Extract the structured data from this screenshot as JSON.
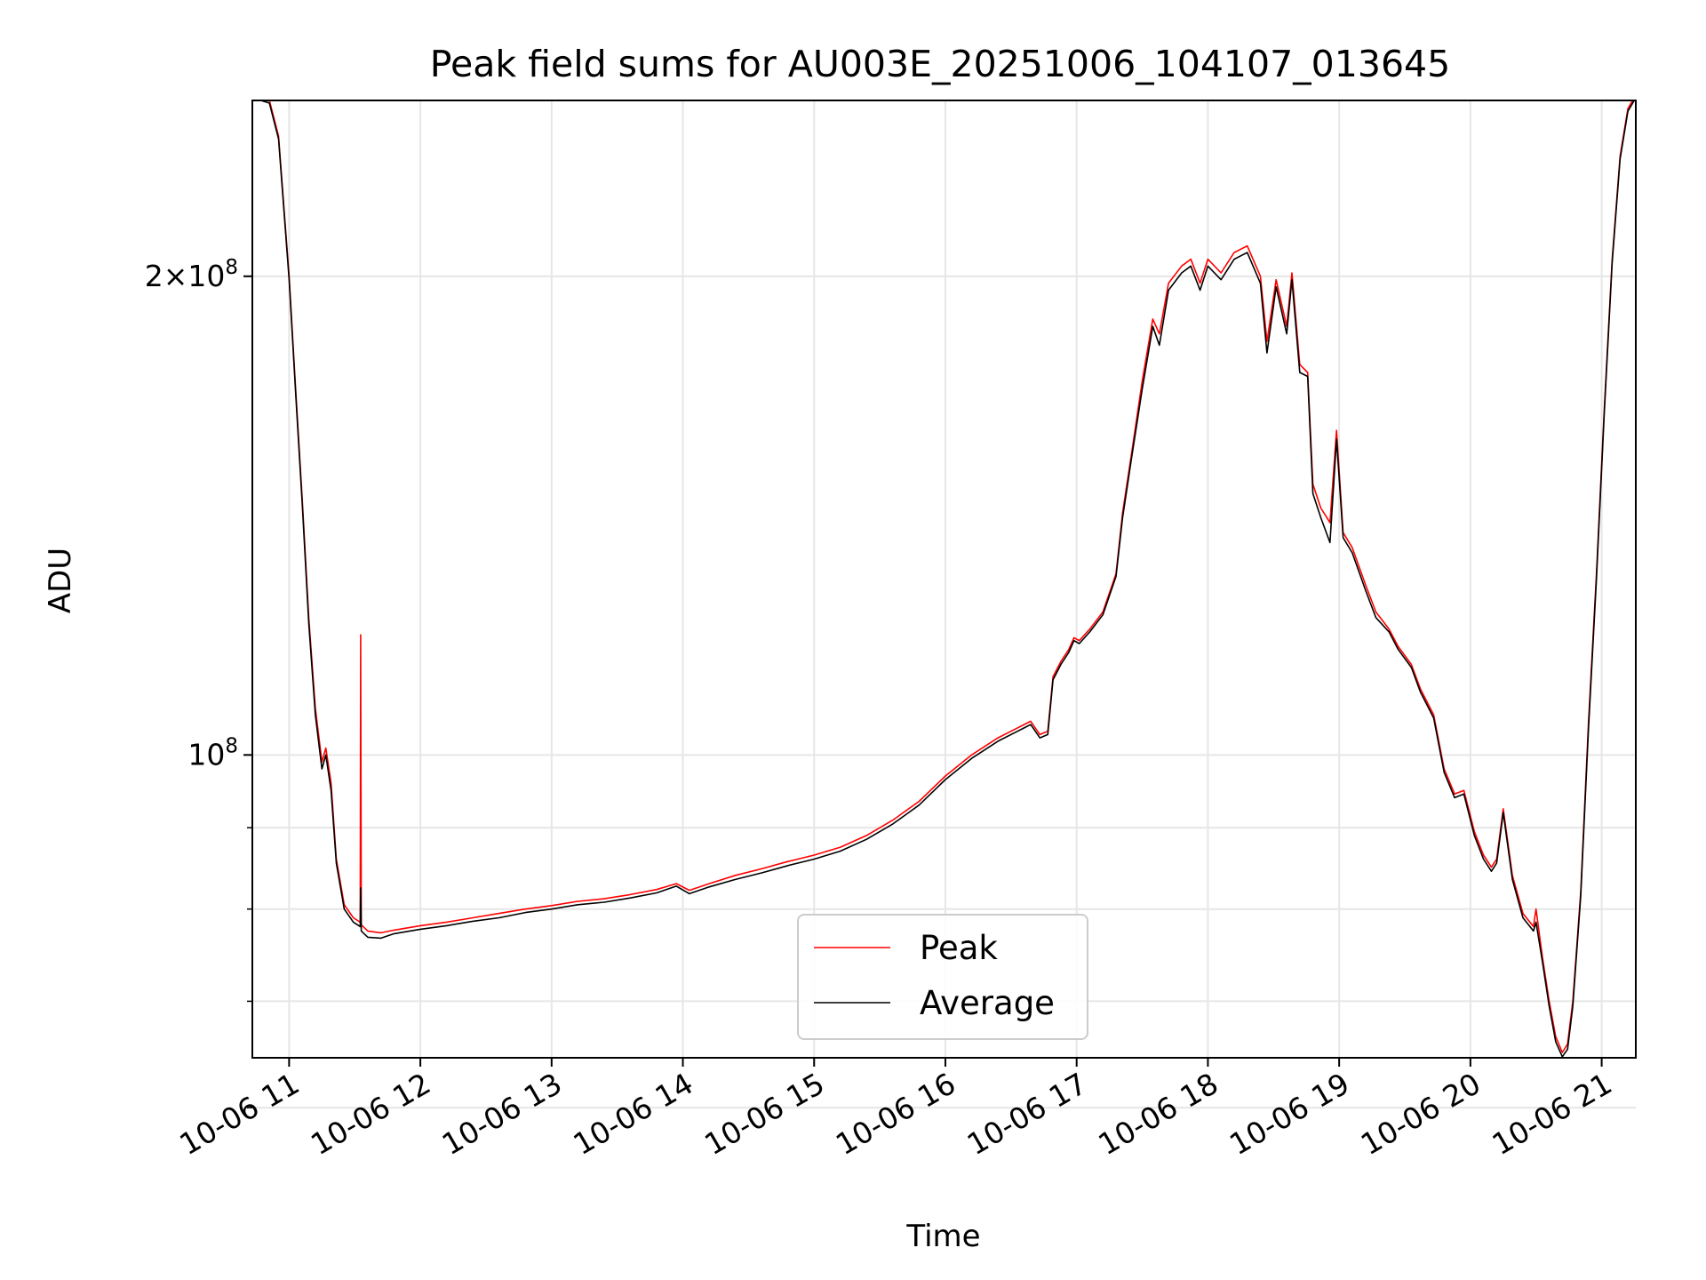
{
  "chart_data": {
    "type": "line",
    "title": "Peak field sums for AU003E_20251006_104107_013645",
    "xlabel": "Time",
    "ylabel": "ADU",
    "x_ticks": [
      {
        "t": 11,
        "label": "10-06 11"
      },
      {
        "t": 12,
        "label": "10-06 12"
      },
      {
        "t": 13,
        "label": "10-06 13"
      },
      {
        "t": 14,
        "label": "10-06 14"
      },
      {
        "t": 15,
        "label": "10-06 15"
      },
      {
        "t": 16,
        "label": "10-06 16"
      },
      {
        "t": 17,
        "label": "10-06 17"
      },
      {
        "t": 18,
        "label": "10-06 18"
      },
      {
        "t": 19,
        "label": "10-06 19"
      },
      {
        "t": 20,
        "label": "10-06 20"
      },
      {
        "t": 21,
        "label": "10-06 21"
      }
    ],
    "y_scale": "log",
    "y_major_ticks": [
      {
        "v": 200000000,
        "base": "2×10",
        "exp": "8"
      },
      {
        "v": 100000000,
        "base": "10",
        "exp": "8"
      }
    ],
    "y_minor_ticks": [
      60000000,
      70000000,
      80000000,
      90000000
    ],
    "xlim": [
      10.72,
      21.26
    ],
    "ylim": [
      64500000,
      258000000
    ],
    "grid": true,
    "legend_position": "lower center",
    "series": [
      {
        "name": "Peak",
        "color": "#ff0000",
        "points": [
          [
            10.72,
            260000000
          ],
          [
            10.85,
            258000000
          ],
          [
            10.92,
            245000000
          ],
          [
            11.0,
            200000000
          ],
          [
            11.05,
            170000000
          ],
          [
            11.1,
            145000000
          ],
          [
            11.15,
            122000000
          ],
          [
            11.2,
            107000000
          ],
          [
            11.25,
            99000000
          ],
          [
            11.28,
            101000000
          ],
          [
            11.32,
            96000000
          ],
          [
            11.36,
            86000000
          ],
          [
            11.42,
            80500000
          ],
          [
            11.49,
            79000000
          ],
          [
            11.542,
            78500000
          ],
          [
            11.545,
            119000000
          ],
          [
            11.55,
            78200000
          ],
          [
            11.6,
            77500000
          ],
          [
            11.7,
            77300000
          ],
          [
            11.8,
            77600000
          ],
          [
            12.0,
            78100000
          ],
          [
            12.2,
            78500000
          ],
          [
            12.4,
            79000000
          ],
          [
            12.6,
            79500000
          ],
          [
            12.8,
            80000000
          ],
          [
            13.0,
            80400000
          ],
          [
            13.2,
            80900000
          ],
          [
            13.4,
            81200000
          ],
          [
            13.6,
            81700000
          ],
          [
            13.8,
            82300000
          ],
          [
            13.95,
            83000000
          ],
          [
            14.05,
            82200000
          ],
          [
            14.2,
            83000000
          ],
          [
            14.4,
            84000000
          ],
          [
            14.6,
            84800000
          ],
          [
            14.8,
            85700000
          ],
          [
            15.0,
            86500000
          ],
          [
            15.2,
            87500000
          ],
          [
            15.4,
            89000000
          ],
          [
            15.6,
            91000000
          ],
          [
            15.8,
            93500000
          ],
          [
            16.0,
            97000000
          ],
          [
            16.2,
            100000000
          ],
          [
            16.4,
            102500000
          ],
          [
            16.6,
            104500000
          ],
          [
            16.65,
            105000000
          ],
          [
            16.72,
            103000000
          ],
          [
            16.78,
            103500000
          ],
          [
            16.82,
            112000000
          ],
          [
            16.88,
            114500000
          ],
          [
            16.94,
            116500000
          ],
          [
            16.98,
            118500000
          ],
          [
            17.02,
            118000000
          ],
          [
            17.1,
            120000000
          ],
          [
            17.2,
            123000000
          ],
          [
            17.3,
            130000000
          ],
          [
            17.35,
            142000000
          ],
          [
            17.42,
            155000000
          ],
          [
            17.5,
            172000000
          ],
          [
            17.58,
            188000000
          ],
          [
            17.63,
            184000000
          ],
          [
            17.7,
            198000000
          ],
          [
            17.8,
            203000000
          ],
          [
            17.87,
            205000000
          ],
          [
            17.94,
            198000000
          ],
          [
            18.0,
            205000000
          ],
          [
            18.1,
            201000000
          ],
          [
            18.2,
            207000000
          ],
          [
            18.3,
            209000000
          ],
          [
            18.4,
            200000000
          ],
          [
            18.45,
            182000000
          ],
          [
            18.52,
            199000000
          ],
          [
            18.6,
            186000000
          ],
          [
            18.64,
            201000000
          ],
          [
            18.7,
            176000000
          ],
          [
            18.76,
            174000000
          ],
          [
            18.8,
            148000000
          ],
          [
            18.86,
            143000000
          ],
          [
            18.93,
            140000000
          ],
          [
            18.98,
            160000000
          ],
          [
            19.03,
            138000000
          ],
          [
            19.1,
            135000000
          ],
          [
            19.2,
            128000000
          ],
          [
            19.28,
            123000000
          ],
          [
            19.38,
            120000000
          ],
          [
            19.45,
            117000000
          ],
          [
            19.55,
            114000000
          ],
          [
            19.62,
            110000000
          ],
          [
            19.72,
            106000000
          ],
          [
            19.8,
            98000000
          ],
          [
            19.88,
            94500000
          ],
          [
            19.95,
            95000000
          ],
          [
            20.03,
            89500000
          ],
          [
            20.1,
            86500000
          ],
          [
            20.16,
            85000000
          ],
          [
            20.2,
            86000000
          ],
          [
            20.25,
            92500000
          ],
          [
            20.32,
            84000000
          ],
          [
            20.4,
            79500000
          ],
          [
            20.48,
            78000000
          ],
          [
            20.5,
            80000000
          ],
          [
            20.55,
            74500000
          ],
          [
            20.6,
            70000000
          ],
          [
            20.65,
            66500000
          ],
          [
            20.7,
            65000000
          ],
          [
            20.74,
            65800000
          ],
          [
            20.78,
            70000000
          ],
          [
            20.84,
            82000000
          ],
          [
            20.9,
            105000000
          ],
          [
            20.96,
            130000000
          ],
          [
            21.02,
            165000000
          ],
          [
            21.08,
            205000000
          ],
          [
            21.14,
            238000000
          ],
          [
            21.2,
            255000000
          ],
          [
            21.26,
            260000000
          ]
        ]
      },
      {
        "name": "Average",
        "color": "#000000",
        "points": [
          [
            10.72,
            259000000
          ],
          [
            10.85,
            257000000
          ],
          [
            10.92,
            244000000
          ],
          [
            11.0,
            199000000
          ],
          [
            11.05,
            169000000
          ],
          [
            11.1,
            144000000
          ],
          [
            11.15,
            121000000
          ],
          [
            11.2,
            106000000
          ],
          [
            11.25,
            98000000
          ],
          [
            11.28,
            100000000
          ],
          [
            11.32,
            95000000
          ],
          [
            11.36,
            85500000
          ],
          [
            11.42,
            80000000
          ],
          [
            11.49,
            78500000
          ],
          [
            11.542,
            78000000
          ],
          [
            11.545,
            82500000
          ],
          [
            11.55,
            77500000
          ],
          [
            11.6,
            76800000
          ],
          [
            11.7,
            76700000
          ],
          [
            11.8,
            77200000
          ],
          [
            12.0,
            77700000
          ],
          [
            12.2,
            78100000
          ],
          [
            12.4,
            78600000
          ],
          [
            12.6,
            79000000
          ],
          [
            12.8,
            79600000
          ],
          [
            13.0,
            80000000
          ],
          [
            13.2,
            80500000
          ],
          [
            13.4,
            80800000
          ],
          [
            13.6,
            81300000
          ],
          [
            13.8,
            81900000
          ],
          [
            13.95,
            82700000
          ],
          [
            14.05,
            81800000
          ],
          [
            14.2,
            82600000
          ],
          [
            14.4,
            83500000
          ],
          [
            14.6,
            84300000
          ],
          [
            14.8,
            85200000
          ],
          [
            15.0,
            86000000
          ],
          [
            15.2,
            87000000
          ],
          [
            15.4,
            88500000
          ],
          [
            15.6,
            90500000
          ],
          [
            15.8,
            93000000
          ],
          [
            16.0,
            96500000
          ],
          [
            16.2,
            99500000
          ],
          [
            16.4,
            102000000
          ],
          [
            16.6,
            104000000
          ],
          [
            16.65,
            104500000
          ],
          [
            16.72,
            102500000
          ],
          [
            16.78,
            103000000
          ],
          [
            16.82,
            111500000
          ],
          [
            16.88,
            114000000
          ],
          [
            16.94,
            116000000
          ],
          [
            16.98,
            118000000
          ],
          [
            17.02,
            117500000
          ],
          [
            17.1,
            119500000
          ],
          [
            17.2,
            122500000
          ],
          [
            17.3,
            129500000
          ],
          [
            17.35,
            141000000
          ],
          [
            17.42,
            154000000
          ],
          [
            17.5,
            170000000
          ],
          [
            17.58,
            186000000
          ],
          [
            17.63,
            181000000
          ],
          [
            17.7,
            196000000
          ],
          [
            17.8,
            201000000
          ],
          [
            17.87,
            203000000
          ],
          [
            17.94,
            196000000
          ],
          [
            18.0,
            203000000
          ],
          [
            18.1,
            199000000
          ],
          [
            18.2,
            205000000
          ],
          [
            18.3,
            207000000
          ],
          [
            18.4,
            198000000
          ],
          [
            18.45,
            179000000
          ],
          [
            18.52,
            197000000
          ],
          [
            18.6,
            184000000
          ],
          [
            18.64,
            199000000
          ],
          [
            18.7,
            174000000
          ],
          [
            18.76,
            173000000
          ],
          [
            18.8,
            146000000
          ],
          [
            18.86,
            141000000
          ],
          [
            18.93,
            136000000
          ],
          [
            18.98,
            158000000
          ],
          [
            19.03,
            137000000
          ],
          [
            19.1,
            134000000
          ],
          [
            19.2,
            127000000
          ],
          [
            19.28,
            122000000
          ],
          [
            19.38,
            119500000
          ],
          [
            19.45,
            116500000
          ],
          [
            19.55,
            113500000
          ],
          [
            19.62,
            109500000
          ],
          [
            19.72,
            105500000
          ],
          [
            19.8,
            97500000
          ],
          [
            19.88,
            94000000
          ],
          [
            19.95,
            94500000
          ],
          [
            20.03,
            89000000
          ],
          [
            20.1,
            86000000
          ],
          [
            20.16,
            84500000
          ],
          [
            20.2,
            85500000
          ],
          [
            20.25,
            92000000
          ],
          [
            20.32,
            83500000
          ],
          [
            20.4,
            79000000
          ],
          [
            20.48,
            77500000
          ],
          [
            20.5,
            78500000
          ],
          [
            20.55,
            74000000
          ],
          [
            20.6,
            69500000
          ],
          [
            20.65,
            66000000
          ],
          [
            20.7,
            64600000
          ],
          [
            20.74,
            65300000
          ],
          [
            20.78,
            69500000
          ],
          [
            20.84,
            81500000
          ],
          [
            20.9,
            104000000
          ],
          [
            20.96,
            129000000
          ],
          [
            21.02,
            164000000
          ],
          [
            21.08,
            204000000
          ],
          [
            21.14,
            237000000
          ],
          [
            21.2,
            254000000
          ],
          [
            21.26,
            259000000
          ]
        ]
      }
    ]
  }
}
